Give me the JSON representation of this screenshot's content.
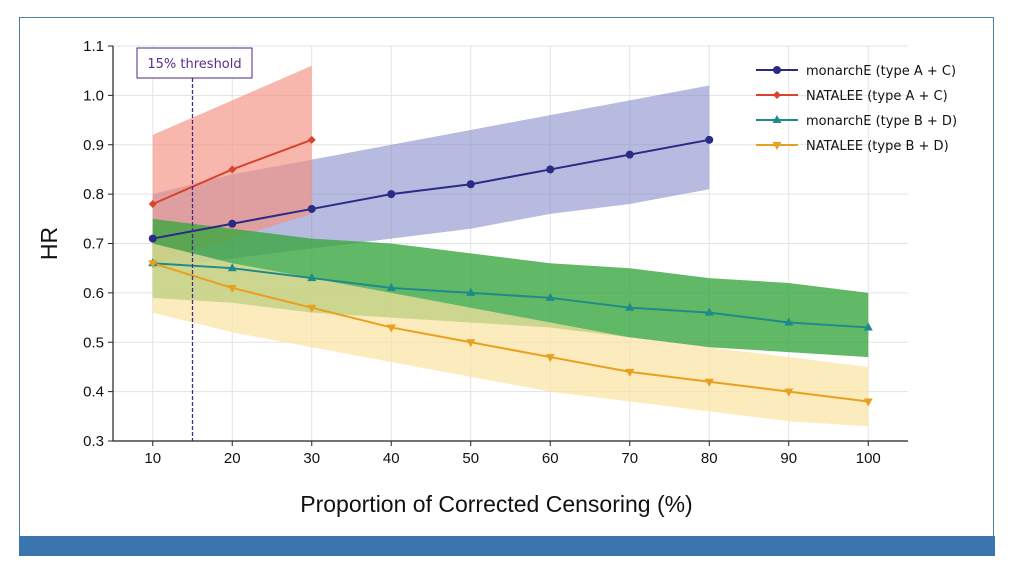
{
  "chart_data": {
    "type": "line",
    "title": "",
    "xlabel": "Proportion of Corrected Censoring (%)",
    "ylabel": "HR",
    "xlim": [
      5,
      105
    ],
    "ylim": [
      0.3,
      1.1
    ],
    "xticks": [
      10,
      20,
      30,
      40,
      50,
      60,
      70,
      80,
      90,
      100
    ],
    "yticks": [
      0.3,
      0.4,
      0.5,
      0.6,
      0.7,
      0.8,
      0.9,
      1.0,
      1.1
    ],
    "ytick_labels": [
      "0.3",
      "0.4",
      "0.5",
      "0.6",
      "0.7",
      "0.8",
      "0.9",
      "1.0",
      "1.1"
    ],
    "grid": true,
    "legend_position": "top-right",
    "threshold": {
      "x": 15,
      "label": "15% threshold",
      "color": "#4b2a84"
    },
    "series": [
      {
        "name": "monarchE (type A + C)",
        "color": "#2b2a85",
        "band_color": "#7b84c4",
        "marker": "circle",
        "x": [
          10,
          20,
          30,
          40,
          50,
          60,
          70,
          80
        ],
        "y": [
          0.71,
          0.74,
          0.77,
          0.8,
          0.82,
          0.85,
          0.88,
          0.91
        ],
        "lower": [
          0.65,
          0.67,
          0.69,
          0.71,
          0.73,
          0.76,
          0.78,
          0.81
        ],
        "upper": [
          0.8,
          0.84,
          0.87,
          0.9,
          0.93,
          0.96,
          0.99,
          1.02
        ]
      },
      {
        "name": "NATALEE (type A + C)",
        "color": "#d8432b",
        "band_color": "#f4907f",
        "marker": "diamond",
        "x": [
          10,
          20,
          30
        ],
        "y": [
          0.78,
          0.85,
          0.91
        ],
        "lower": [
          0.66,
          0.71,
          0.76
        ],
        "upper": [
          0.92,
          0.99,
          1.06
        ]
      },
      {
        "name": "monarchE (type B + D)",
        "color": "#1f8a8a",
        "band_color": "#3aa640",
        "marker": "triangle-up",
        "x": [
          10,
          20,
          30,
          40,
          50,
          60,
          70,
          80,
          90,
          100
        ],
        "y": [
          0.66,
          0.65,
          0.63,
          0.61,
          0.6,
          0.59,
          0.57,
          0.56,
          0.54,
          0.53
        ],
        "lower": [
          0.59,
          0.58,
          0.56,
          0.55,
          0.54,
          0.53,
          0.51,
          0.49,
          0.48,
          0.47
        ],
        "upper": [
          0.75,
          0.73,
          0.71,
          0.7,
          0.68,
          0.66,
          0.65,
          0.63,
          0.62,
          0.6
        ]
      },
      {
        "name": "NATALEE (type B + D)",
        "color": "#e8a020",
        "band_color": "#fbe3a0",
        "marker": "triangle-down",
        "x": [
          10,
          20,
          30,
          40,
          50,
          60,
          70,
          80,
          90,
          100
        ],
        "y": [
          0.66,
          0.61,
          0.57,
          0.53,
          0.5,
          0.47,
          0.44,
          0.42,
          0.4,
          0.38
        ],
        "lower": [
          0.56,
          0.52,
          0.49,
          0.46,
          0.43,
          0.4,
          0.38,
          0.36,
          0.34,
          0.33
        ],
        "upper": [
          0.7,
          0.66,
          0.63,
          0.6,
          0.57,
          0.54,
          0.51,
          0.49,
          0.47,
          0.45
        ]
      }
    ]
  }
}
